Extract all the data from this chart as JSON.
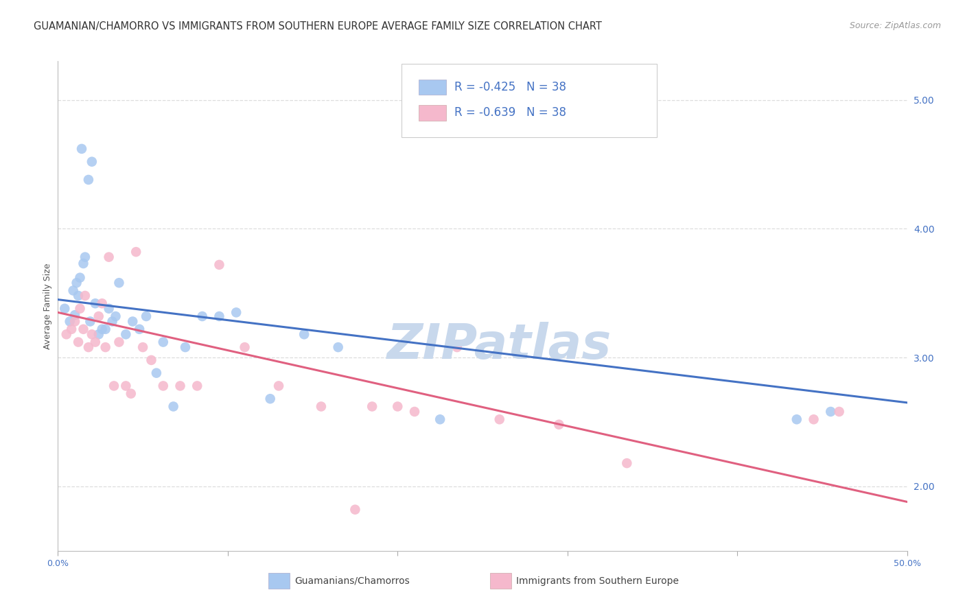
{
  "title": "GUAMANIAN/CHAMORRO VS IMMIGRANTS FROM SOUTHERN EUROPE AVERAGE FAMILY SIZE CORRELATION CHART",
  "source": "Source: ZipAtlas.com",
  "ylabel": "Average Family Size",
  "ylim": [
    1.5,
    5.3
  ],
  "xlim": [
    0.0,
    0.5
  ],
  "yticks_right": [
    2.0,
    3.0,
    4.0,
    5.0
  ],
  "xtick_positions": [
    0.0,
    0.1,
    0.2,
    0.3,
    0.4,
    0.5
  ],
  "xtick_labels": [
    "0.0%",
    "",
    "",
    "",
    "",
    "50.0%"
  ],
  "series1_name": "Guamanians/Chamorros",
  "series1_color": "#A8C8F0",
  "series1_edge_color": "#A8C8F0",
  "series1_line_color": "#4472C4",
  "series1_R": -0.425,
  "series1_N": 38,
  "series2_name": "Immigrants from Southern Europe",
  "series2_color": "#F5B8CC",
  "series2_edge_color": "#F5B8CC",
  "series2_line_color": "#E06080",
  "series2_R": -0.639,
  "series2_N": 38,
  "blue_x": [
    0.004,
    0.007,
    0.009,
    0.01,
    0.011,
    0.012,
    0.013,
    0.014,
    0.015,
    0.016,
    0.018,
    0.019,
    0.02,
    0.022,
    0.024,
    0.026,
    0.028,
    0.03,
    0.032,
    0.034,
    0.036,
    0.04,
    0.044,
    0.048,
    0.052,
    0.058,
    0.062,
    0.068,
    0.075,
    0.085,
    0.095,
    0.105,
    0.125,
    0.145,
    0.165,
    0.225,
    0.435,
    0.455
  ],
  "blue_y": [
    3.38,
    3.28,
    3.52,
    3.33,
    3.58,
    3.48,
    3.62,
    4.62,
    3.73,
    3.78,
    4.38,
    3.28,
    4.52,
    3.42,
    3.18,
    3.22,
    3.22,
    3.38,
    3.28,
    3.32,
    3.58,
    3.18,
    3.28,
    3.22,
    3.32,
    2.88,
    3.12,
    2.62,
    3.08,
    3.32,
    3.32,
    3.35,
    2.68,
    3.18,
    3.08,
    2.52,
    2.52,
    2.58
  ],
  "pink_x": [
    0.005,
    0.008,
    0.01,
    0.012,
    0.013,
    0.015,
    0.016,
    0.018,
    0.02,
    0.022,
    0.024,
    0.026,
    0.028,
    0.03,
    0.033,
    0.036,
    0.04,
    0.043,
    0.046,
    0.05,
    0.055,
    0.062,
    0.072,
    0.082,
    0.095,
    0.11,
    0.13,
    0.155,
    0.185,
    0.21,
    0.235,
    0.26,
    0.295,
    0.335,
    0.2,
    0.175,
    0.445,
    0.46
  ],
  "pink_y": [
    3.18,
    3.22,
    3.28,
    3.12,
    3.38,
    3.22,
    3.48,
    3.08,
    3.18,
    3.12,
    3.32,
    3.42,
    3.08,
    3.78,
    2.78,
    3.12,
    2.78,
    2.72,
    3.82,
    3.08,
    2.98,
    2.78,
    2.78,
    2.78,
    3.72,
    3.08,
    2.78,
    2.62,
    2.62,
    2.58,
    3.08,
    2.52,
    2.48,
    2.18,
    2.62,
    1.82,
    2.52,
    2.58
  ],
  "background_color": "#FFFFFF",
  "grid_color": "#DDDDDD",
  "title_fontsize": 10.5,
  "axis_label_fontsize": 9,
  "tick_fontsize": 9,
  "legend_fontsize": 12,
  "legend_text_color": "#4472C4",
  "watermark_text": "ZIPatlas",
  "watermark_color": "#C8D8EC",
  "watermark_fontsize": 52,
  "blue_line_x0": 0.0,
  "blue_line_x1": 0.5,
  "blue_line_y0": 3.45,
  "blue_line_y1": 2.65,
  "pink_line_x0": 0.0,
  "pink_line_x1": 0.5,
  "pink_line_y0": 3.35,
  "pink_line_y1": 1.88
}
